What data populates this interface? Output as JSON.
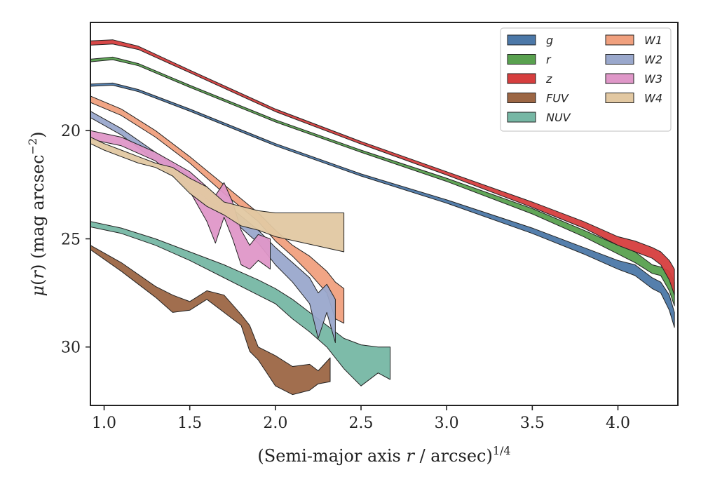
{
  "chart_data": {
    "type": "area",
    "xlabel": "(Semi-major axis r / arcsec)^{1/4}",
    "ylabel": "μ(r) (mag arcsec^{−2})",
    "xlim": [
      0.92,
      4.35
    ],
    "ylim": [
      32.7,
      15.0
    ],
    "y_inverted": true,
    "xticks": [
      1.0,
      1.5,
      2.0,
      2.5,
      3.0,
      3.5,
      4.0
    ],
    "xtick_labels": [
      "1.0",
      "1.5",
      "2.0",
      "2.5",
      "3.0",
      "3.5",
      "4.0"
    ],
    "yticks": [
      20,
      25,
      30
    ],
    "ytick_labels": [
      "20",
      "25",
      "30"
    ],
    "grid": false,
    "legend": {
      "position": "top-right",
      "columns": 2
    },
    "series": [
      {
        "name": "g",
        "color": "#4c78a8",
        "x": [
          0.92,
          1.05,
          1.2,
          1.5,
          2.0,
          2.5,
          3.0,
          3.5,
          3.8,
          4.0,
          4.1,
          4.2,
          4.25,
          4.3,
          4.33
        ],
        "y_upper": [
          17.85,
          17.8,
          18.1,
          19.0,
          20.6,
          22.0,
          23.2,
          24.5,
          25.4,
          26.0,
          26.2,
          26.8,
          27.0,
          27.6,
          28.4
        ],
        "y_lower": [
          17.95,
          17.9,
          18.2,
          19.1,
          20.7,
          22.1,
          23.35,
          24.75,
          25.7,
          26.4,
          26.7,
          27.3,
          27.5,
          28.3,
          29.1
        ]
      },
      {
        "name": "r",
        "color": "#59a14f",
        "x": [
          0.92,
          1.05,
          1.2,
          1.5,
          2.0,
          2.5,
          3.0,
          3.5,
          3.8,
          4.0,
          4.1,
          4.2,
          4.25,
          4.3,
          4.33
        ],
        "y_upper": [
          16.7,
          16.6,
          16.9,
          17.9,
          19.5,
          20.9,
          22.2,
          23.6,
          24.6,
          25.3,
          25.6,
          26.2,
          26.3,
          26.5,
          27.0
        ],
        "y_lower": [
          16.82,
          16.72,
          17.0,
          18.0,
          19.6,
          21.0,
          22.35,
          23.85,
          24.9,
          25.7,
          26.1,
          26.6,
          26.7,
          27.4,
          28.1
        ]
      },
      {
        "name": "z",
        "color": "#d63e3e",
        "x": [
          0.92,
          1.05,
          1.2,
          1.5,
          2.0,
          2.5,
          3.0,
          3.5,
          3.8,
          4.0,
          4.1,
          4.2,
          4.25,
          4.3,
          4.33
        ],
        "y_upper": [
          15.85,
          15.8,
          16.1,
          17.2,
          19.0,
          20.5,
          21.9,
          23.3,
          24.2,
          24.9,
          25.1,
          25.4,
          25.6,
          26.0,
          26.4
        ],
        "y_lower": [
          16.05,
          16.0,
          16.25,
          17.32,
          19.12,
          20.62,
          22.05,
          23.55,
          24.5,
          25.3,
          25.6,
          25.9,
          26.2,
          26.9,
          27.6
        ]
      },
      {
        "name": "FUV",
        "color": "#9c6644",
        "x": [
          0.92,
          1.1,
          1.3,
          1.4,
          1.5,
          1.6,
          1.7,
          1.8,
          1.85,
          1.9,
          2.0,
          2.1,
          2.2,
          2.25,
          2.32
        ],
        "y_upper": [
          25.3,
          26.1,
          27.2,
          27.6,
          27.9,
          27.4,
          27.6,
          28.5,
          29.0,
          30.0,
          30.4,
          30.9,
          30.8,
          31.1,
          30.5
        ],
        "y_lower": [
          25.5,
          26.5,
          27.7,
          28.4,
          28.3,
          27.8,
          28.4,
          29.0,
          30.2,
          30.6,
          31.8,
          32.2,
          32.0,
          31.7,
          31.6
        ]
      },
      {
        "name": "NUV",
        "color": "#76b7a4",
        "x": [
          0.92,
          1.1,
          1.3,
          1.5,
          1.7,
          1.9,
          2.0,
          2.1,
          2.2,
          2.3,
          2.4,
          2.5,
          2.6,
          2.67
        ],
        "y_upper": [
          24.2,
          24.5,
          25.0,
          25.6,
          26.2,
          26.9,
          27.3,
          27.8,
          28.4,
          29.0,
          29.6,
          29.9,
          30.0,
          30.0
        ],
        "y_lower": [
          24.45,
          24.75,
          25.3,
          26.0,
          26.8,
          27.6,
          28.0,
          28.7,
          29.3,
          30.0,
          31.0,
          31.8,
          31.2,
          31.5
        ]
      },
      {
        "name": "W1",
        "color": "#f0a07e",
        "x": [
          0.92,
          1.1,
          1.3,
          1.5,
          1.7,
          1.9,
          2.0,
          2.1,
          2.2,
          2.3,
          2.35,
          2.4
        ],
        "y_upper": [
          18.4,
          19.0,
          20.0,
          21.2,
          22.5,
          23.8,
          24.6,
          25.3,
          25.8,
          26.5,
          27.0,
          27.3
        ],
        "y_lower": [
          18.7,
          19.3,
          20.3,
          21.5,
          22.9,
          24.2,
          25.1,
          25.8,
          26.6,
          27.5,
          28.7,
          28.9
        ]
      },
      {
        "name": "W2",
        "color": "#9aa8cc",
        "x": [
          0.92,
          1.1,
          1.3,
          1.5,
          1.7,
          1.9,
          2.0,
          2.1,
          2.2,
          2.25,
          2.3,
          2.35
        ],
        "y_upper": [
          19.1,
          19.9,
          21.0,
          22.1,
          23.3,
          24.6,
          25.4,
          26.1,
          26.8,
          27.5,
          27.1,
          27.8
        ],
        "y_lower": [
          19.4,
          20.2,
          21.4,
          22.5,
          23.8,
          25.2,
          26.2,
          27.0,
          28.0,
          29.6,
          28.4,
          29.8
        ]
      },
      {
        "name": "W3",
        "color": "#df97c8",
        "x": [
          0.92,
          1.1,
          1.3,
          1.5,
          1.6,
          1.65,
          1.7,
          1.75,
          1.8,
          1.85,
          1.9,
          1.97
        ],
        "y_upper": [
          20.0,
          20.3,
          21.0,
          21.9,
          22.6,
          23.0,
          22.4,
          23.3,
          24.6,
          25.3,
          24.8,
          25.0
        ],
        "y_lower": [
          20.4,
          20.7,
          21.4,
          22.8,
          24.2,
          25.2,
          24.0,
          25.0,
          26.2,
          26.4,
          26.0,
          26.4
        ]
      },
      {
        "name": "W4",
        "color": "#e2c8a2",
        "x": [
          0.92,
          1.0,
          1.1,
          1.2,
          1.3,
          1.4,
          1.5,
          1.6,
          1.7,
          1.8,
          1.9,
          2.0,
          2.4
        ],
        "y_upper": [
          20.3,
          20.6,
          20.9,
          21.2,
          21.5,
          21.7,
          22.2,
          22.6,
          23.3,
          23.5,
          23.7,
          23.8,
          23.8
        ],
        "y_lower": [
          20.6,
          20.9,
          21.2,
          21.5,
          21.7,
          22.1,
          22.9,
          23.5,
          23.9,
          24.4,
          24.6,
          24.9,
          25.6
        ]
      }
    ]
  }
}
